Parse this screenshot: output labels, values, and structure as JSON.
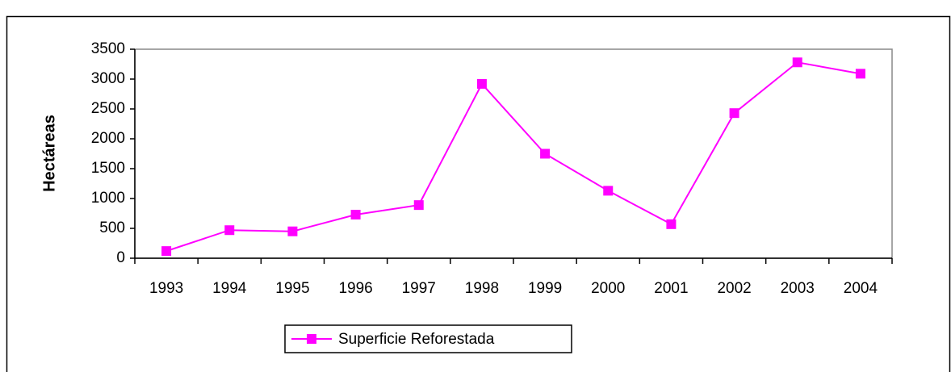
{
  "chart_data": {
    "type": "line",
    "ylabel": "Hectáreas",
    "categories": [
      "1993",
      "1994",
      "1995",
      "1996",
      "1997",
      "1998",
      "1999",
      "2000",
      "2001",
      "2002",
      "2003",
      "2004"
    ],
    "series": [
      {
        "name": "Superficie Reforestada",
        "color": "#ff00ff",
        "values": [
          120,
          470,
          450,
          730,
          890,
          2920,
          1750,
          1130,
          570,
          2430,
          3280,
          3090
        ]
      }
    ],
    "ylim": [
      0,
      3500
    ],
    "yticks": [
      0,
      500,
      1000,
      1500,
      2000,
      2500,
      3000,
      3500
    ],
    "legend": "bottom"
  }
}
